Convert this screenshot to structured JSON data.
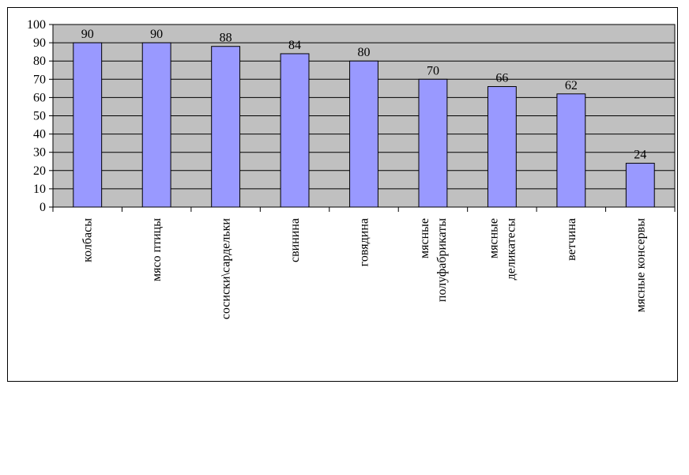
{
  "chart_data": {
    "type": "bar",
    "title": "",
    "xlabel": "",
    "ylabel": "",
    "ylim": [
      0,
      100
    ],
    "ytick_step": 10,
    "grid": true,
    "legend": "none",
    "categories": [
      [
        "колбасы"
      ],
      [
        "мясо птицы"
      ],
      [
        "сосиски\\сардельки"
      ],
      [
        "свинина"
      ],
      [
        "говядина"
      ],
      [
        "мясные",
        "полуфабрикаты"
      ],
      [
        "мясные",
        "деликатесы"
      ],
      [
        "ветчина"
      ],
      [
        "мясные консервы"
      ]
    ],
    "values": [
      90,
      90,
      88,
      84,
      80,
      70,
      66,
      62,
      24
    ],
    "yticks": [
      "0",
      "10",
      "20",
      "30",
      "40",
      "50",
      "60",
      "70",
      "80",
      "90",
      "100"
    ],
    "colors": {
      "bar_fill": "#9999ff",
      "bar_stroke": "#000000",
      "plot_background": "#c0c0c0",
      "grid": "#000000"
    }
  }
}
